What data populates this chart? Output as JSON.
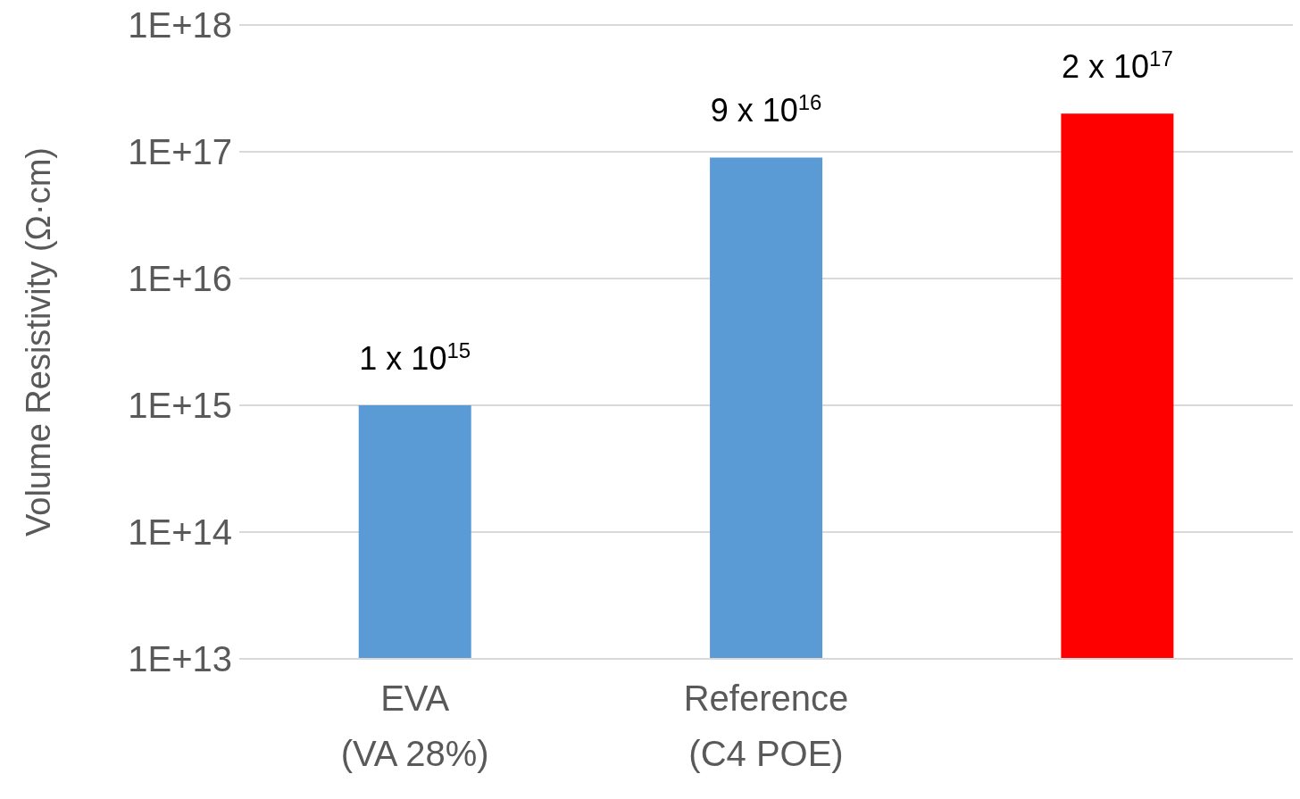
{
  "chart_data": {
    "type": "bar",
    "ylabel": "Volume Resistivity (Ω·cm)",
    "categories": [
      "EVA\n(VA 28%)",
      "Reference\n(C4 POE)",
      null
    ],
    "values": [
      1000000000000000.0,
      9e+16,
      2e+17
    ],
    "colors": [
      "#5b9bd5",
      "#5b9bd5",
      "#ff0000"
    ],
    "value_labels": [
      "1 x 10$^{15}$",
      "9 x 10$^{16}$",
      "2 x 10$^{17}$"
    ],
    "log": true,
    "ylim": [
      10000000000000.0,
      1e+18
    ],
    "yticks": [
      {
        "value": 10000000000000.0,
        "label": "1E+13"
      },
      {
        "value": 100000000000000.0,
        "label": "1E+14"
      },
      {
        "value": 1000000000000000.0,
        "label": "1E+15"
      },
      {
        "value": 1e+16,
        "label": "1E+16"
      },
      {
        "value": 1e+17,
        "label": "1E+17"
      },
      {
        "value": 1e+18,
        "label": "1E+18"
      }
    ],
    "grid": "y",
    "legend": false
  }
}
